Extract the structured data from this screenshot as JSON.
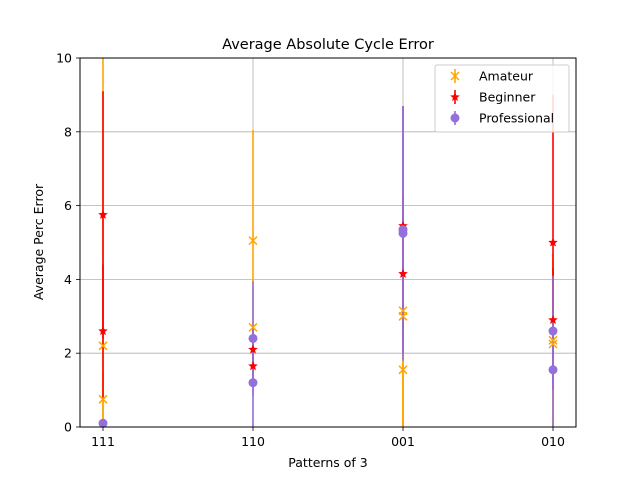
{
  "chart_data": {
    "type": "scatter",
    "title": "Average Absolute Cycle Error",
    "xlabel": "Patterns of 3",
    "ylabel": "Average Perc Error",
    "categories": [
      "111",
      "110",
      "001",
      "010"
    ],
    "ylim": [
      0,
      10
    ],
    "yticks": [
      "0",
      "2",
      "4",
      "6",
      "8",
      "10"
    ],
    "grid": true,
    "legend_position": "top-right",
    "series": [
      {
        "name": "Amateur",
        "color": "#ffa500",
        "marker": "x",
        "points": [
          {
            "cat": 0,
            "y": 0.75,
            "err": [
              0,
              1.5
            ]
          },
          {
            "cat": 0,
            "y": 2.2,
            "err": [
              0,
              10
            ]
          },
          {
            "cat": 1,
            "y": 5.05,
            "err": [
              4.0,
              8.05
            ]
          },
          {
            "cat": 1,
            "y": 2.7,
            "err": [
              1.4,
              4.0
            ]
          },
          {
            "cat": 2,
            "y": 3.15,
            "err": [
              0,
              6.3
            ]
          },
          {
            "cat": 2,
            "y": 3.0,
            "err": [
              0,
              6.0
            ]
          },
          {
            "cat": 2,
            "y": 1.55,
            "err": [
              0,
              3.1
            ]
          },
          {
            "cat": 3,
            "y": 2.35,
            "err": [
              0,
              4.7
            ]
          },
          {
            "cat": 3,
            "y": 2.25,
            "err": [
              0,
              4.5
            ]
          }
        ]
      },
      {
        "name": "Beginner",
        "color": "#ff0000",
        "marker": "star",
        "points": [
          {
            "cat": 0,
            "y": 5.75,
            "err": [
              2.4,
              9.1
            ]
          },
          {
            "cat": 0,
            "y": 2.6,
            "err": [
              0.8,
              4.4
            ]
          },
          {
            "cat": 1,
            "y": 2.1,
            "err": [
              1.5,
              2.7
            ]
          },
          {
            "cat": 1,
            "y": 1.65,
            "err": [
              1.2,
              2.1
            ]
          },
          {
            "cat": 2,
            "y": 5.45,
            "err": [
              2.2,
              8.7
            ]
          },
          {
            "cat": 2,
            "y": 4.15,
            "err": [
              2.0,
              6.3
            ]
          },
          {
            "cat": 3,
            "y": 5.0,
            "err": [
              1.0,
              9.0
            ]
          },
          {
            "cat": 3,
            "y": 2.9,
            "err": [
              1.5,
              4.3
            ]
          }
        ]
      },
      {
        "name": "Professional",
        "color": "#9370db",
        "marker": "circle",
        "points": [
          {
            "cat": 0,
            "y": 0.1,
            "err": [
              0,
              0.2
            ]
          },
          {
            "cat": 1,
            "y": 2.4,
            "err": [
              0.85,
              3.95
            ]
          },
          {
            "cat": 1,
            "y": 1.2,
            "err": [
              0,
              2.4
            ]
          },
          {
            "cat": 2,
            "y": 5.35,
            "err": [
              2.0,
              8.7
            ]
          },
          {
            "cat": 2,
            "y": 5.25,
            "err": [
              1.8,
              8.7
            ]
          },
          {
            "cat": 3,
            "y": 2.6,
            "err": [
              1.1,
              4.1
            ]
          },
          {
            "cat": 3,
            "y": 1.55,
            "err": [
              0,
              3.1
            ]
          }
        ]
      }
    ]
  }
}
